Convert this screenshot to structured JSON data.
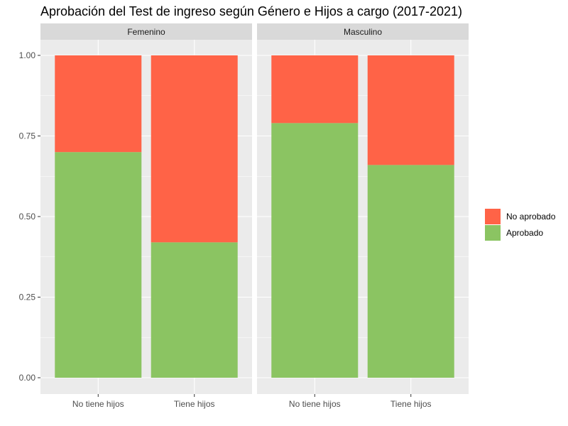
{
  "chart_data": {
    "type": "bar",
    "stacked": true,
    "normalized": true,
    "title": "Aprobación del Test de ingreso según Género e Hijos a cargo (2017-2021)",
    "xlabel": "",
    "ylabel": "",
    "ylim": [
      0,
      1
    ],
    "yticks": [
      "0.00",
      "0.25",
      "0.50",
      "0.75",
      "1.00"
    ],
    "yticks_values": [
      0,
      0.25,
      0.5,
      0.75,
      1.0
    ],
    "grid": true,
    "legend_position": "right",
    "categories": [
      "No tiene hijos",
      "Tiene hijos"
    ],
    "facets": [
      {
        "label": "Femenino",
        "series": [
          {
            "name": "Aprobado",
            "values": [
              0.7,
              0.42
            ]
          },
          {
            "name": "No aprobado",
            "values": [
              0.3,
              0.58
            ]
          }
        ]
      },
      {
        "label": "Masculino",
        "series": [
          {
            "name": "Aprobado",
            "values": [
              0.79,
              0.66
            ]
          },
          {
            "name": "No aprobado",
            "values": [
              0.21,
              0.34
            ]
          }
        ]
      }
    ],
    "legend": [
      {
        "name": "No aprobado",
        "color": "#FF6347"
      },
      {
        "name": "Aprobado",
        "color": "#8BC462"
      }
    ],
    "colors": {
      "Aprobado": "#8BC462",
      "No aprobado": "#FF6347",
      "panel_background": "#EBEBEB",
      "strip_background": "#D9D9D9",
      "grid": "#FFFFFF"
    }
  }
}
